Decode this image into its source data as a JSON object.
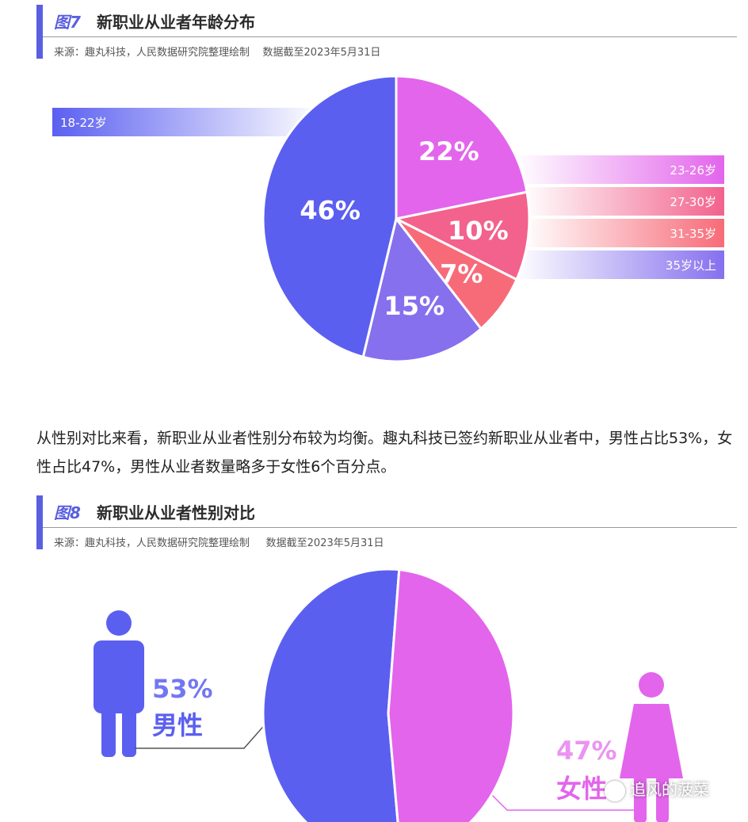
{
  "figure7": {
    "number": "图7",
    "title": "新职业从业者年龄分布",
    "source": "来源：趣丸科技，人民数据研究院整理绘制    数据截至2023年5月31日"
  },
  "figure8": {
    "number": "图8",
    "title": "新职业从业者性别对比",
    "source": "来源：趣丸科技，人民数据研究院整理绘制     数据截至2023年5月31日"
  },
  "paragraph": "从性别对比来看，新职业从业者性别分布较为均衡。趣丸科技已签约新职业从业者中，男性占比53%，女性占比47%，男性从业者数量略多于女性6个百分点。",
  "chart_data": [
    {
      "type": "pie",
      "categories": [
        "18-22岁",
        "23-26岁",
        "27-30岁",
        "31-35岁",
        "35岁以上"
      ],
      "values": [
        46,
        22,
        10,
        7,
        15
      ],
      "data_labels": [
        "46%",
        "22%",
        "10%",
        "7%",
        "15%"
      ],
      "colors": [
        "#5b5ff0",
        "#e365ec",
        "#f2628c",
        "#f76b78",
        "#8670ee"
      ]
    },
    {
      "type": "pie",
      "categories": [
        "男性",
        "女性"
      ],
      "values": [
        53,
        47
      ],
      "data_labels": [
        "53%",
        "47%"
      ],
      "colors": [
        "#5b5ff0",
        "#e365ec"
      ]
    }
  ],
  "watermark": {
    "text": "追风的菠菜",
    "icon": "wechat-icon"
  }
}
